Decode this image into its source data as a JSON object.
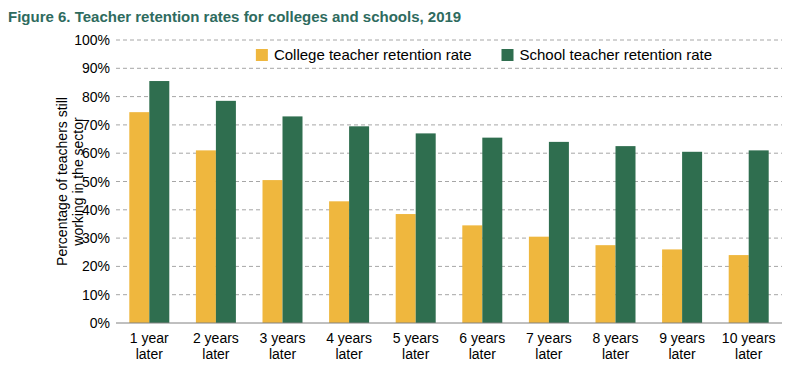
{
  "chart_data": {
    "type": "bar",
    "title": "Figure 6. Teacher retention rates for colleges and schools, 2019",
    "ylabel": "Percentage of teachers still working in the sector",
    "categories": [
      "1 year later",
      "2 years later",
      "3 years later",
      "4 years later",
      "5 years later",
      "6 years later",
      "7 years later",
      "8 years later",
      "9 years later",
      "10 years later"
    ],
    "series": [
      {
        "name": "College teacher retention rate",
        "color": "#efb73e",
        "values": [
          74.5,
          61,
          50.5,
          43,
          38.5,
          34.5,
          30.5,
          27.5,
          26,
          24
        ]
      },
      {
        "name": "School teacher retention rate",
        "color": "#2f6e4f",
        "values": [
          85.5,
          78.5,
          73,
          69.5,
          67,
          65.5,
          64,
          62.5,
          60.5,
          61
        ]
      }
    ],
    "ylim": [
      0,
      100
    ],
    "yticks": [
      {
        "value": 0,
        "label": "0%"
      },
      {
        "value": 10,
        "label": "10%"
      },
      {
        "value": 20,
        "label": "20%"
      },
      {
        "value": 30,
        "label": "30%"
      },
      {
        "value": 40,
        "label": "40%"
      },
      {
        "value": 50,
        "label": "50%"
      },
      {
        "value": 60,
        "label": "60%"
      },
      {
        "value": 70,
        "label": "70%"
      },
      {
        "value": 80,
        "label": "80%"
      },
      {
        "value": 90,
        "label": "90%"
      },
      {
        "value": 100,
        "label": "100%"
      }
    ],
    "grid": true,
    "legend": "top"
  }
}
